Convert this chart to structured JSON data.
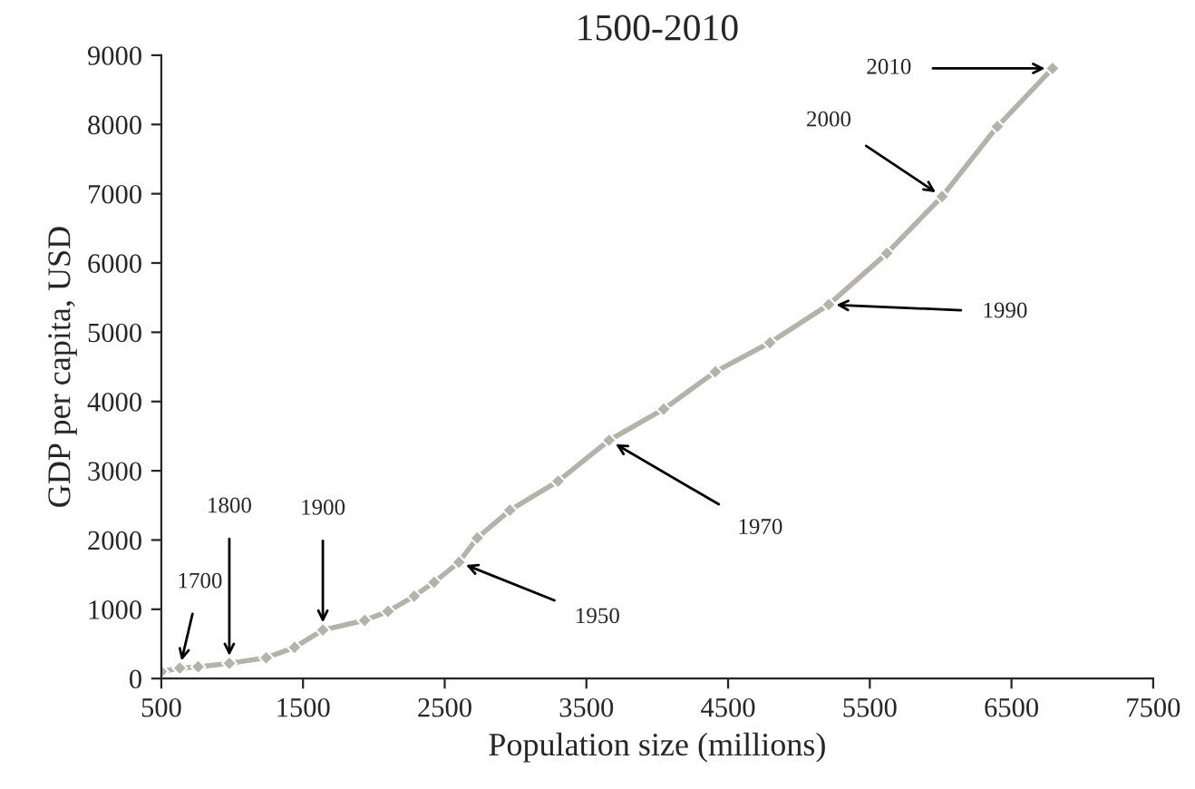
{
  "chart_data": {
    "type": "line",
    "title": "1500-2010",
    "xlabel": "Population size (millions)",
    "ylabel": "GDP per capita, USD",
    "x": [
      500,
      630,
      760,
      980,
      1240,
      1440,
      1640,
      1935,
      2100,
      2285,
      2425,
      2600,
      2730,
      2960,
      3300,
      3660,
      4045,
      4410,
      4795,
      5210,
      5620,
      6010,
      6400,
      6790
    ],
    "series": [
      {
        "color": "#b3b3aa",
        "values": [
          100,
          150,
          170,
          220,
          300,
          450,
          700,
          840,
          970,
          1190,
          1390,
          1680,
          2030,
          2430,
          2850,
          3440,
          3890,
          4430,
          4850,
          5400,
          6140,
          6960,
          7970,
          8810
        ]
      }
    ],
    "xlim": [
      500,
      7500
    ],
    "xticks": [
      500,
      1500,
      2500,
      3500,
      4500,
      5500,
      6500,
      7500
    ],
    "ylim": [
      0,
      9000
    ],
    "yticks": [
      0,
      1000,
      2000,
      3000,
      4000,
      5000,
      6000,
      7000,
      8000,
      9000
    ],
    "marker": "diamond",
    "line_style": "solid",
    "grid": false,
    "legend": false,
    "annotations": [
      {
        "text": "1700",
        "x": 630,
        "y": 150
      },
      {
        "text": "1800",
        "x": 980,
        "y": 220
      },
      {
        "text": "1900",
        "x": 1640,
        "y": 700
      },
      {
        "text": "1950",
        "x": 2600,
        "y": 1680
      },
      {
        "text": "1970",
        "x": 3660,
        "y": 3440
      },
      {
        "text": "1990",
        "x": 5210,
        "y": 5400
      },
      {
        "text": "2000",
        "x": 6010,
        "y": 6960
      },
      {
        "text": "2010",
        "x": 6790,
        "y": 8810
      }
    ]
  }
}
